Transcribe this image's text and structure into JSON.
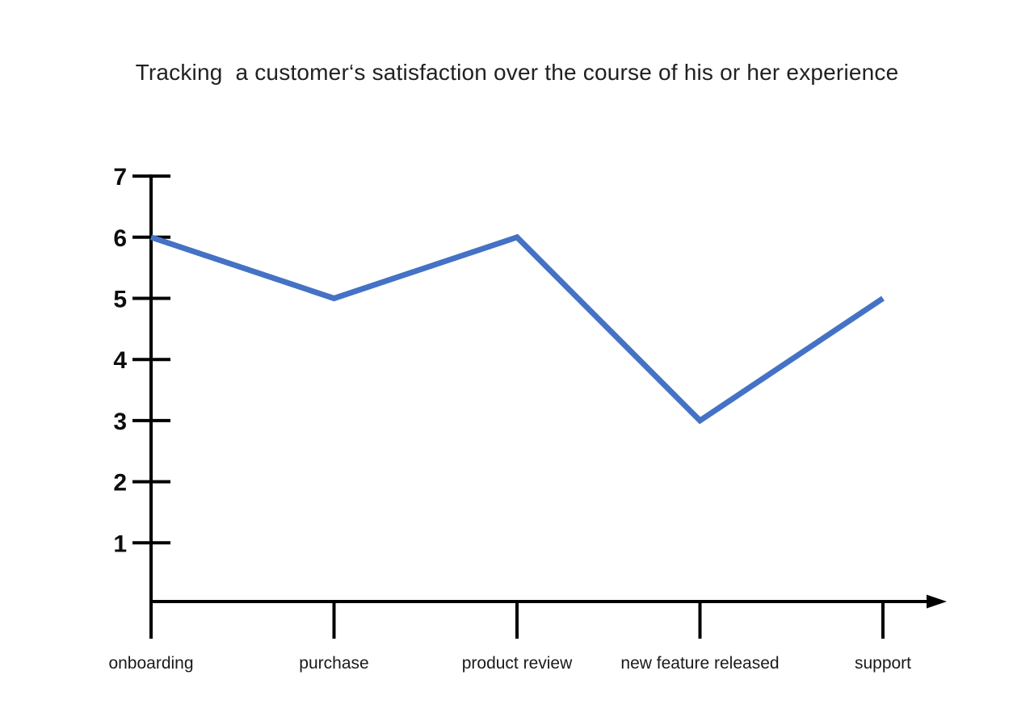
{
  "page": {
    "background": "#ffffff"
  },
  "chart_data": {
    "type": "line",
    "title": "Tracking  a customer‘s satisfaction over the course of his or her experience",
    "categories": [
      "onboarding",
      "purchase",
      "product review",
      "new feature released",
      "support"
    ],
    "values": [
      6,
      5,
      6,
      3,
      5
    ],
    "yticks": [
      1,
      2,
      3,
      4,
      5,
      6,
      7
    ],
    "ylim": [
      0,
      7
    ],
    "xlabel": "",
    "ylabel": "",
    "grid": false,
    "legend": false,
    "line_color": "#4472C4",
    "axis_color": "#000000",
    "text_color": "#1a1a1a"
  }
}
